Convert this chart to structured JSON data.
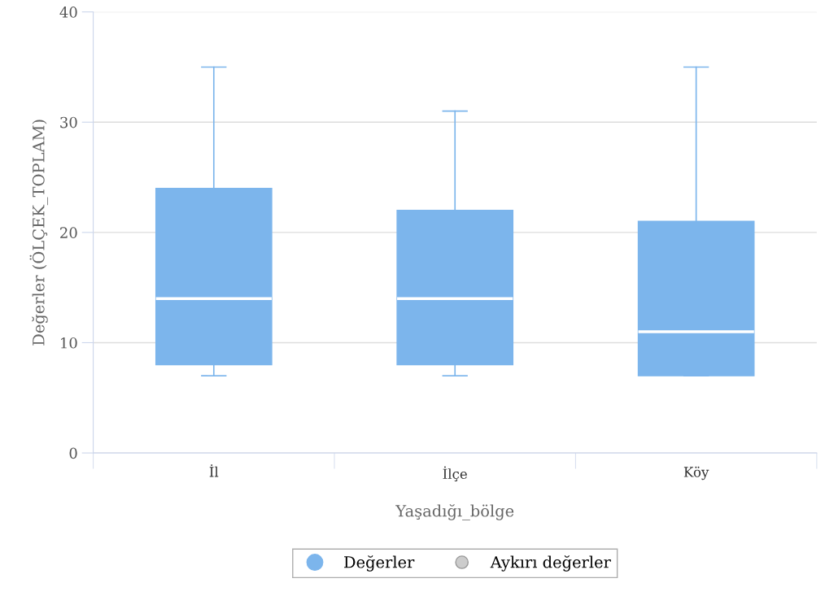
{
  "chart_data": {
    "type": "box",
    "xlabel": "Yaşadığı_bölge",
    "ylabel": "Değerler (ÖLÇEK_TOPLAM)",
    "categories": [
      "İl",
      "İlçe",
      "Köy"
    ],
    "series": [
      {
        "name": "Değerler",
        "color": "#7cb5ec",
        "boxes": [
          {
            "low": 7,
            "q1": 8,
            "median": 14,
            "q3": 24,
            "high": 35
          },
          {
            "low": 7,
            "q1": 8,
            "median": 14,
            "q3": 22,
            "high": 31
          },
          {
            "low": 7,
            "q1": 7,
            "median": 11,
            "q3": 21,
            "high": 35
          }
        ]
      },
      {
        "name": "Aykırı değerler",
        "color": "#cccccc",
        "type": "scatter",
        "values": [
          null,
          null,
          null
        ]
      }
    ],
    "ylim": [
      0,
      40
    ],
    "yticks": [
      0,
      10,
      20,
      30,
      40
    ],
    "grid": "y",
    "legend": "bottom"
  }
}
